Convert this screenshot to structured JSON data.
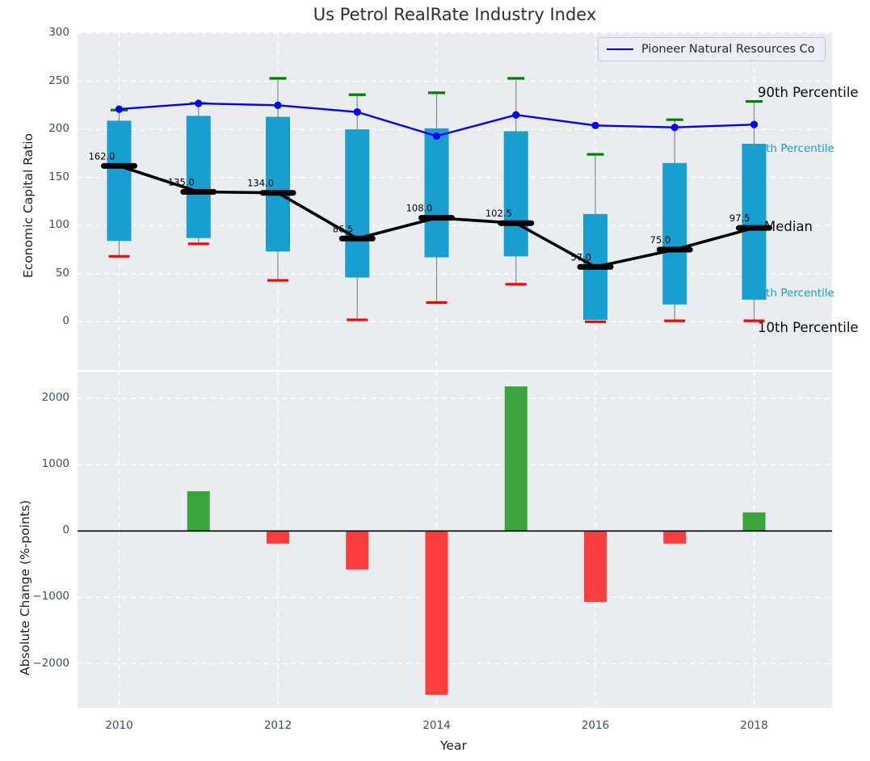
{
  "title": "Us Petrol RealRate Industry Index",
  "legend": {
    "label": "Pioneer Natural Resources Co"
  },
  "chart_data": [
    {
      "type": "boxplot-percentiles+line",
      "title": "Us Petrol RealRate Industry Index",
      "ylabel": "Economic Capital Ratio",
      "x": [
        2010,
        2011,
        2012,
        2013,
        2014,
        2015,
        2016,
        2017,
        2018
      ],
      "p90": [
        220,
        227,
        253,
        236,
        238,
        253,
        174,
        210,
        229
      ],
      "p75": [
        209,
        214,
        213,
        200,
        201,
        198,
        112,
        165,
        185
      ],
      "median": [
        162.0,
        135.0,
        134.0,
        86.5,
        108.0,
        102.5,
        57.0,
        75.0,
        97.5
      ],
      "p25": [
        84,
        87,
        73,
        46,
        67,
        68,
        2,
        18,
        23
      ],
      "p10": [
        68,
        81,
        43,
        2,
        20,
        39,
        0,
        1,
        1
      ],
      "series": [
        {
          "name": "Pioneer Natural Resources Co",
          "values": [
            221,
            227,
            225,
            218,
            193,
            215,
            204,
            202,
            205
          ]
        }
      ],
      "yticks": [
        0,
        50,
        100,
        150,
        200,
        250,
        300
      ],
      "ylim": [
        -50,
        301
      ],
      "grid": true,
      "legend_position": "upper right",
      "right_labels": [
        "90th Percentile",
        "75th Percentile",
        "Median",
        "25th Percentile",
        "10th Percentile"
      ]
    },
    {
      "type": "bar",
      "ylabel": "Absolute Change (%-points)",
      "xlabel": "Year",
      "x": [
        2010,
        2011,
        2012,
        2013,
        2014,
        2015,
        2016,
        2017,
        2018
      ],
      "values": [
        0,
        600,
        -190,
        -580,
        -2470,
        2180,
        -1070,
        -190,
        280
      ],
      "yticks": [
        -2000,
        -1000,
        0,
        1000,
        2000
      ],
      "ylim": [
        -2660,
        2400
      ],
      "xticks": [
        2010,
        2012,
        2014,
        2016,
        2018
      ],
      "grid": true
    }
  ],
  "colors": {
    "panel_bg": "#e9edf0",
    "grid": "#ffffff",
    "box": "#189fd0",
    "whisker": "#8a8a8a",
    "cap_high": "#008000",
    "cap_low": "#ff0000",
    "median": "#000000",
    "line": "#0000ff",
    "bar_up": "#3ba33b",
    "bar_down": "#fc3d3d",
    "tick": "#3d4e63",
    "cyan_label": "#189fd0"
  }
}
